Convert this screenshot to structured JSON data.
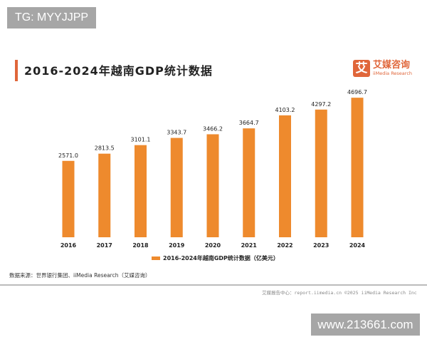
{
  "watermarks": {
    "top_left": "TG: MYYJJPP",
    "bottom_right": "www.213661.com"
  },
  "logo": {
    "mark": "艾",
    "name_cn": "艾媒咨询",
    "name_en": "iiMedia Research"
  },
  "chart_data": {
    "type": "bar",
    "title": "2016-2024年越南GDP统计数据",
    "categories": [
      "2016",
      "2017",
      "2018",
      "2019",
      "2020",
      "2021",
      "2022",
      "2023",
      "2024"
    ],
    "series": [
      {
        "name": "2016-2024年越南GDP统计数据（亿美元）",
        "values": [
          2571.0,
          2813.5,
          3101.1,
          3343.7,
          3466.2,
          3664.7,
          4103.2,
          4297.2,
          4696.7
        ]
      }
    ],
    "data_labels": [
      "2571.0",
      "2813.5",
      "3101.1",
      "3343.7",
      "3466.2",
      "3664.7",
      "4103.2",
      "4297.2",
      "4696.7"
    ],
    "ylim": [
      0,
      4700
    ],
    "grid": false,
    "legend_position": "bottom",
    "bar_color": "#ee8a2d"
  },
  "source": "数据来源：世界银行集团、iiMedia Research（艾媒咨询）",
  "footer": "艾媒报告中心：report.iimedia.cn  ©2025  iiMedia Research Inc"
}
